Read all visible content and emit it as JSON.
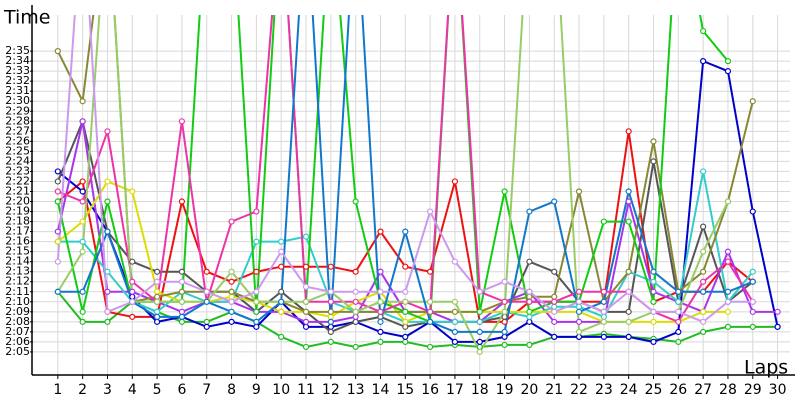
{
  "chart_data": {
    "type": "line",
    "ylabel": "Time",
    "xlabel": "Laps",
    "x": [
      1,
      2,
      3,
      4,
      5,
      6,
      7,
      8,
      9,
      10,
      11,
      12,
      13,
      14,
      15,
      16,
      17,
      18,
      19,
      20,
      21,
      22,
      23,
      24,
      25,
      26,
      27,
      28,
      29,
      30
    ],
    "xlim": [
      0,
      30.5
    ],
    "xticks": [
      1,
      2,
      3,
      4,
      5,
      6,
      7,
      8,
      9,
      10,
      11,
      12,
      13,
      14,
      15,
      16,
      17,
      18,
      19,
      20,
      21,
      22,
      23,
      24,
      25,
      26,
      27,
      28,
      29,
      30
    ],
    "ylim": [
      122.7,
      158.6
    ],
    "yticks": [
      {
        "value": 125,
        "label": "2:05"
      },
      {
        "value": 126,
        "label": "2:06"
      },
      {
        "value": 127,
        "label": "2:07"
      },
      {
        "value": 128,
        "label": "2:08"
      },
      {
        "value": 129,
        "label": "2:09"
      },
      {
        "value": 130,
        "label": "2:10"
      },
      {
        "value": 131,
        "label": "2:11"
      },
      {
        "value": 132,
        "label": "2:12"
      },
      {
        "value": 133,
        "label": "2:13"
      },
      {
        "value": 134,
        "label": "2:14"
      },
      {
        "value": 135,
        "label": "2:15"
      },
      {
        "value": 136,
        "label": "2:16"
      },
      {
        "value": 137,
        "label": "2:17"
      },
      {
        "value": 138,
        "label": "2:18"
      },
      {
        "value": 139,
        "label": "2:19"
      },
      {
        "value": 140,
        "label": "2:20"
      },
      {
        "value": 141,
        "label": "2:21"
      },
      {
        "value": 142,
        "label": "2:22"
      },
      {
        "value": 143,
        "label": "2:23"
      },
      {
        "value": 144,
        "label": "2:24"
      },
      {
        "value": 145,
        "label": "2:25"
      },
      {
        "value": 146,
        "label": "2:26"
      },
      {
        "value": 147,
        "label": "2:27"
      },
      {
        "value": 148,
        "label": "2:28"
      },
      {
        "value": 149,
        "label": "2:29"
      },
      {
        "value": 150,
        "label": "2:30"
      },
      {
        "value": 151,
        "label": "2:31"
      },
      {
        "value": 152,
        "label": "2:32"
      },
      {
        "value": 153,
        "label": "2:33"
      },
      {
        "value": 154,
        "label": "2:34"
      },
      {
        "value": 155,
        "label": "2:35"
      }
    ],
    "grid": true,
    "series": [
      {
        "color": "#22bb22",
        "values": [
          131,
          128,
          128,
          130,
          129,
          128,
          128,
          129,
          128,
          126.5,
          125.5,
          126,
          125.5,
          126,
          126,
          125.5,
          125.7,
          125.5,
          125.7,
          125.7,
          126.5,
          126.5,
          126.8,
          126.5,
          126.3,
          126,
          127,
          127.5,
          127.5,
          127.5
        ]
      },
      {
        "color": "#ee1111",
        "values": [
          140,
          142,
          129,
          128.5,
          128.5,
          140,
          133,
          132,
          133,
          133.5,
          133.5,
          133.5,
          133,
          137,
          133.5,
          133,
          142,
          128,
          128,
          130,
          130,
          130,
          130,
          147,
          130,
          131,
          131,
          134,
          132,
          null
        ]
      },
      {
        "color": "#0000cc",
        "values": [
          143,
          141,
          137,
          130.5,
          128,
          128.5,
          127.5,
          128,
          127.5,
          130,
          127.5,
          127.5,
          128,
          127,
          126.5,
          128,
          126,
          126,
          126.5,
          128,
          126.5,
          126.5,
          126.5,
          126.5,
          126,
          127,
          154,
          153,
          139,
          127.5
        ]
      },
      {
        "color": "#555555",
        "values": [
          142,
          148,
          137,
          134,
          133,
          133,
          131,
          131,
          129,
          131,
          129,
          127,
          128,
          128.5,
          127.5,
          128,
          128,
          128,
          128.5,
          134,
          133,
          130,
          129,
          129,
          144,
          130,
          137.5,
          130,
          132,
          null
        ]
      },
      {
        "color": "#aa33ee",
        "values": [
          137,
          148,
          131,
          131,
          130,
          129,
          130,
          130,
          129,
          129,
          128,
          128,
          128.5,
          133,
          129,
          129,
          128,
          128,
          130,
          131,
          128,
          128,
          128,
          140,
          131,
          130,
          129,
          135,
          129,
          129
        ]
      },
      {
        "color": "#33cccc",
        "values": [
          136,
          136,
          133,
          130,
          129,
          131,
          130,
          130,
          136,
          136,
          136.5,
          130,
          129,
          129,
          128,
          128,
          128,
          128,
          129,
          128.5,
          129.5,
          129.5,
          128.5,
          133,
          132,
          130,
          143,
          130,
          133,
          null
        ]
      },
      {
        "color": "#dddd00",
        "values": [
          136,
          138,
          142,
          141,
          131,
          130,
          130,
          130.5,
          130,
          129,
          129,
          128.5,
          130,
          131,
          128,
          129,
          129,
          129,
          129,
          129,
          129,
          129,
          128,
          128,
          128,
          128,
          129,
          129,
          null,
          null
        ]
      },
      {
        "color": "#888833",
        "values": [
          155,
          150,
          170,
          130,
          130.5,
          131,
          131,
          131,
          130,
          130,
          129,
          129,
          129,
          129,
          129,
          129,
          129,
          129,
          130,
          130.5,
          130.5,
          141,
          130,
          133,
          146,
          131,
          133,
          140,
          150,
          null
        ]
      },
      {
        "color": "#11cc11",
        "values": [
          140,
          129,
          140,
          130,
          130,
          130,
          170,
          170,
          129,
          170,
          130,
          170,
          140,
          130,
          129,
          128,
          170,
          129,
          141,
          129,
          130,
          130,
          138,
          138,
          130,
          170,
          157,
          154,
          null,
          null
        ]
      },
      {
        "color": "#ee33aa",
        "values": [
          141,
          140,
          147,
          132,
          130,
          148,
          130,
          138,
          139,
          170,
          130,
          130,
          130,
          129,
          130,
          129,
          170,
          131,
          130,
          130,
          130,
          131,
          131,
          131,
          129,
          128,
          132,
          134,
          130,
          null
        ]
      },
      {
        "color": "#99cc66",
        "values": [
          131,
          135,
          170,
          130,
          130,
          130,
          130,
          133,
          130,
          130,
          130,
          131,
          129,
          130,
          130,
          130,
          130,
          125,
          129,
          170,
          170,
          127,
          128,
          128,
          129,
          129,
          135,
          140,
          null,
          null
        ]
      },
      {
        "color": "#1177cc",
        "values": [
          131,
          131,
          137,
          130,
          128.5,
          128.5,
          130,
          129,
          128,
          130,
          170,
          128,
          170,
          128,
          137,
          128,
          127,
          127,
          127,
          139,
          140,
          129,
          130,
          141,
          133,
          131,
          131,
          131,
          132,
          null
        ]
      },
      {
        "color": "#cc99ee",
        "values": [
          134,
          170,
          129,
          130,
          132,
          132,
          131,
          130,
          131,
          135,
          131.5,
          131,
          131,
          131,
          131,
          139,
          134,
          131,
          132,
          131,
          129,
          130,
          129,
          131,
          129,
          129,
          128,
          130,
          130,
          null
        ]
      }
    ]
  }
}
